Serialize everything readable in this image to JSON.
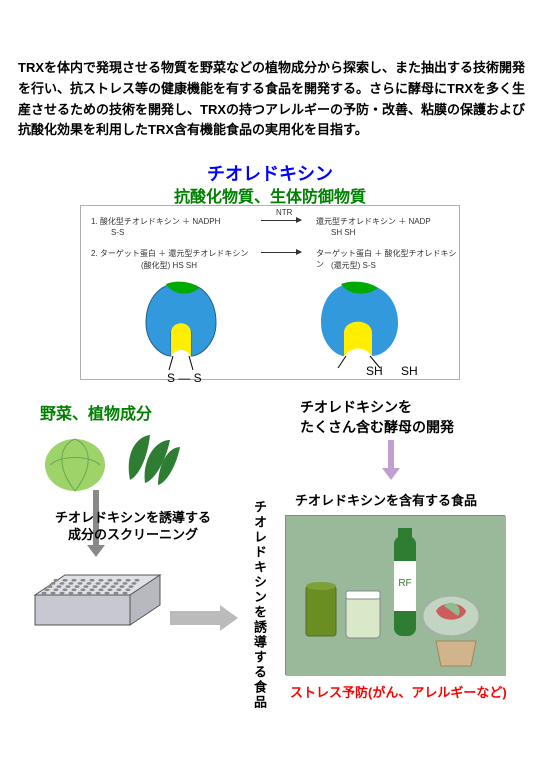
{
  "intro": "TRXを体内で発現させる物質を野菜などの植物成分から探索し、また抽出する技術開発を行い、抗ストレス等の健康機能を有する食品を開発する。さらに酵母にTRXを多く生産させるための技術を開発し、TRXの持つアレルギーの予防・改善、粘膜の保護および抗酸化効果を利用したTRX含有機能食品の実用化を目指す。",
  "title": {
    "main": "チオレドキシン",
    "sub": "抗酸化物質、生体防御物質"
  },
  "reactions": {
    "ntr": "NTR",
    "r1_left": "1. 酸化型チオレドキシン ＋ NADPH",
    "r1_left_sub": "S-S",
    "r1_right": "還元型チオレドキシン ＋ NADP",
    "r1_right_sub": "SH   SH",
    "r2_left": "2. ターゲット蛋白 ＋ 還元型チオレドキシン",
    "r2_left_sub": "(酸化型)        HS   SH",
    "r2_right": "ターゲット蛋白 ＋ 酸化型チオレドキシン",
    "r2_right_sub": "(還元型)          S-S",
    "left_ss": "S — S",
    "right_sh1": "SH",
    "right_sh2": "SH"
  },
  "protein": {
    "body_fill": "#3399dd",
    "cap_fill": "#00aa00",
    "pocket_fill": "#ffee00",
    "stroke": "#206080"
  },
  "labels": {
    "veg": "野菜、植物成分",
    "yeast": "チオレドキシンを\nたくさん含む酵母の開発",
    "screening": "チオレドキシンを誘導する\n成分のスクリーニング",
    "induce_vert": "チオレドキシンを誘導する食品",
    "food_title": "チオレドキシンを含有する食品",
    "stress": "ストレス予防(がん、アレルギーなど)"
  },
  "veg": {
    "cabbage": "#9ed36a",
    "leaf": "#2e7d32"
  },
  "plate": {
    "fill": "#d0d0d8",
    "stroke": "#555",
    "well": "#888"
  },
  "food": {
    "bg": "#9ab89a",
    "cup": "#6b8e23",
    "jar": "#d8e8c8",
    "bottle_cap": "#2e7d32",
    "bottle": "#2e7d32",
    "bottle_label": "#ffffff",
    "bowl": "#e8d0d0",
    "sachet": "#d2b48c"
  },
  "colors": {
    "blue": "#0000ff",
    "green": "#008000",
    "red": "#ff0000",
    "purple_arrow": "#c0a0d0",
    "gray_arrow": "#bbbbbb"
  }
}
